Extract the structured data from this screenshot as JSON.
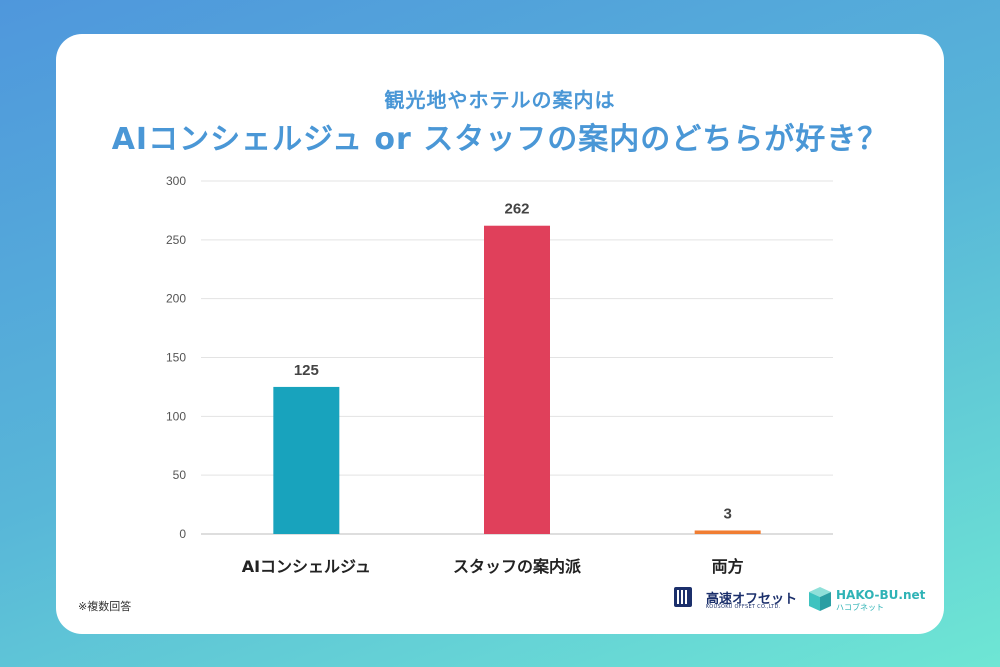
{
  "header": {
    "subtitle": "観光地やホテルの案内は",
    "title": "AIコンシェルジュ or スタッフの案内のどちらが好き？"
  },
  "chart_data": {
    "type": "bar",
    "categories": [
      "AIコンシェルジュ",
      "スタッフの案内派",
      "両方"
    ],
    "values": [
      125,
      262,
      3
    ],
    "bar_colors": [
      "#18a3bd",
      "#e0405b",
      "#f07d32"
    ],
    "ylim": [
      0,
      300
    ],
    "yticks": [
      0,
      50,
      100,
      150,
      200,
      250,
      300
    ],
    "grid": true,
    "data_labels": [
      "125",
      "262",
      "3"
    ]
  },
  "footnote": "※複数回答",
  "logos": {
    "kosoku_name": "高速オフセット",
    "kosoku_sub": "KOUSOKU OFFSET CO.,LTD.",
    "hako_name": "HAKO-BU.net",
    "hako_sub": "ハコブネット"
  },
  "colors": {
    "title": "#4a97d6",
    "kosoku": "#1b2f6b",
    "hako": "#2fb3b6"
  }
}
